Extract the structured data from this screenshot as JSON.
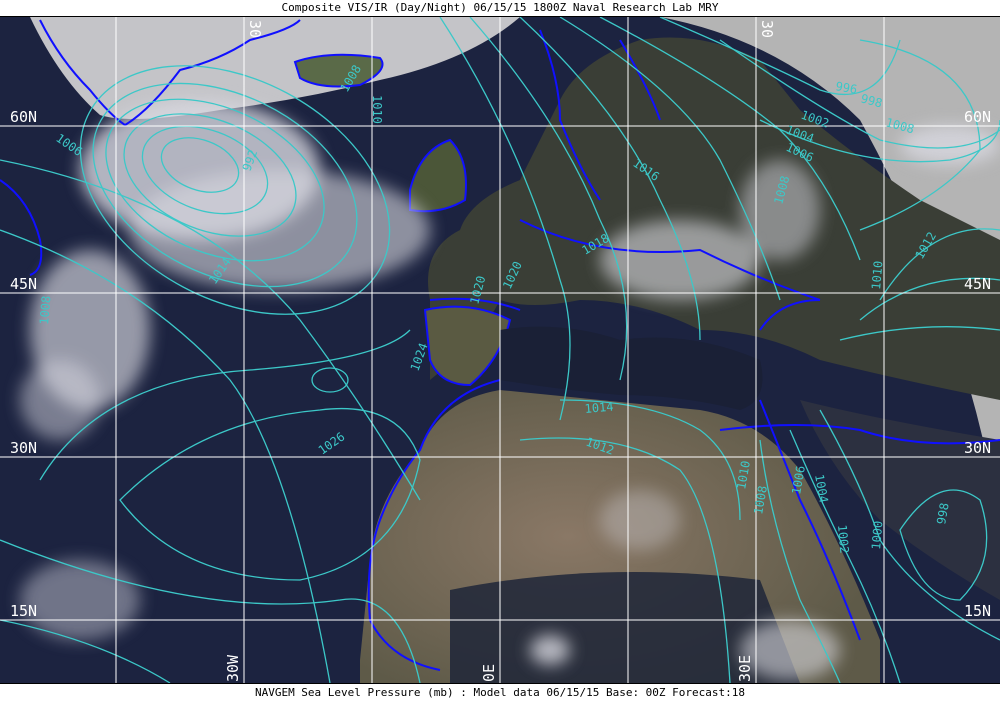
{
  "header": {
    "title": "Composite VIS/IR (Day/Night) 06/15/15 1800Z Naval Research Lab MRY"
  },
  "footer": {
    "caption": "NAVGEM Sea Level Pressure (mb) : Model data 06/15/15 Base: 00Z Forecast:18"
  },
  "map": {
    "latitude_labels": [
      "60N",
      "45N",
      "30N",
      "15N"
    ],
    "longitude_labels": [
      "30W",
      "0E",
      "30E"
    ],
    "top_longitude_labels": [
      "30",
      "30"
    ],
    "contour_labels": [
      "1006",
      "992",
      "1014",
      "1020",
      "1026",
      "1024",
      "1018",
      "1016",
      "996",
      "998",
      "1002",
      "1004",
      "1006",
      "1008",
      "1008",
      "1012",
      "1010",
      "1014",
      "1012",
      "1010",
      "1008",
      "1006",
      "1004",
      "1002",
      "1000",
      "998",
      "1008",
      "1020",
      "1008",
      "1010"
    ],
    "colors": {
      "ocean": "#1c2340",
      "contours": "#3cc8c8",
      "coastlines": "#1010ff",
      "grid": "#ffffff",
      "off_disk": "#b4b4b4"
    }
  }
}
